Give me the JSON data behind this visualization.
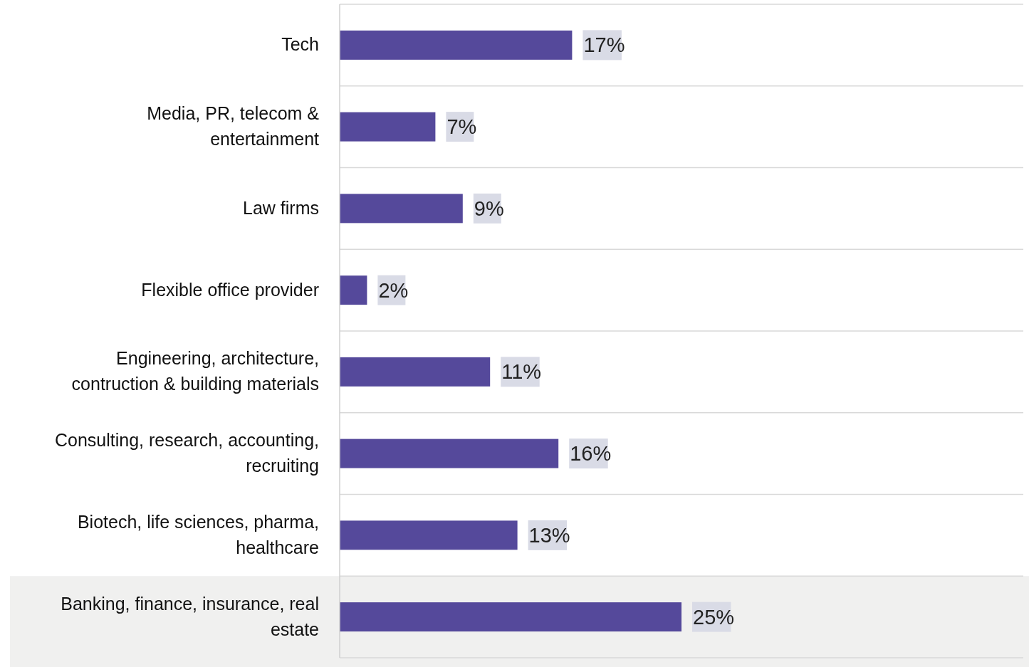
{
  "chart_data": {
    "type": "bar",
    "orientation": "horizontal",
    "categories": [
      "Tech",
      "Media, PR, telecom & entertainment",
      "Law firms",
      "Flexible office provider",
      "Engineering, architecture, contruction & building materials",
      "Consulting, research, accounting, recruiting",
      "Biotech, life sciences, pharma, healthcare",
      "Banking, finance, insurance, real estate"
    ],
    "values": [
      17,
      7,
      9,
      2,
      11,
      16,
      13,
      25
    ],
    "value_labels": [
      "17%",
      "7%",
      "9%",
      "2%",
      "11%",
      "16%",
      "13%",
      "25%"
    ],
    "color": "#55499b",
    "xlim": [
      0,
      50
    ],
    "tick_labels": "y",
    "grid": "y",
    "bands": [
      {
        "axis": "y",
        "from": "Banking, finance, insurance, real estate",
        "to": "Banking, finance, insurance, real estate",
        "color": "#f0f0ef"
      }
    ]
  }
}
